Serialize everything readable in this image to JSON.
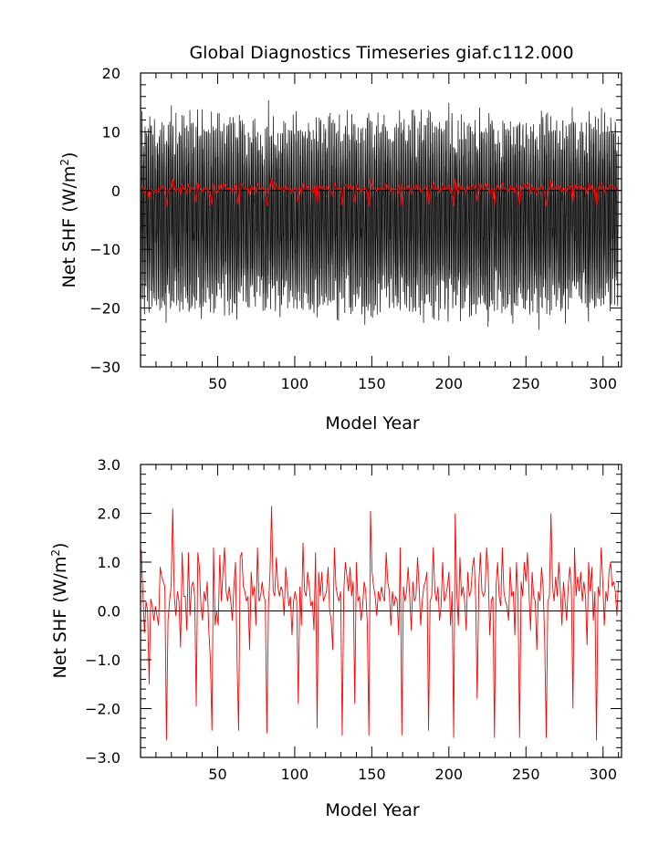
{
  "chart_data": [
    {
      "type": "line",
      "title": "Global Diagnostics Timeseries giaf.c112.000",
      "xlabel": "Model Year",
      "ylabel": "Net SHF (W/m²)",
      "ylabel_parts": {
        "base": "Net SHF (W/m",
        "sup": "2",
        "end": ")"
      },
      "xlim": [
        0,
        312
      ],
      "ylim": [
        -30,
        20
      ],
      "x_ticks": [
        50,
        100,
        150,
        200,
        250,
        300
      ],
      "x_tick_labels": [
        "50",
        "100",
        "150",
        "200",
        "250",
        "300"
      ],
      "y_ticks": [
        -30,
        -20,
        -10,
        0,
        10,
        20
      ],
      "y_tick_labels": [
        "−30",
        "−20",
        "−10",
        "0",
        "10",
        "20"
      ],
      "grid": false,
      "zero_line": true,
      "colors": {
        "monthly": "#000000",
        "annual": "#ff0000"
      },
      "series": [
        {
          "key": "monthly",
          "x_start": 0,
          "x_end": 310,
          "samples_per_year": 12,
          "typical_min": -18,
          "typical_max": 9,
          "extreme_min": -24,
          "extreme_max": 15.5
        },
        {
          "key": "annual",
          "ref": "annual_mean"
        }
      ]
    },
    {
      "type": "line",
      "title": "",
      "xlabel": "Model Year",
      "ylabel": "Net SHF (W/m²)",
      "ylabel_parts": {
        "base": "Net SHF (W/m",
        "sup": "2",
        "end": ")"
      },
      "xlim": [
        0,
        312
      ],
      "ylim": [
        -3.0,
        3.0
      ],
      "x_ticks": [
        50,
        100,
        150,
        200,
        250,
        300
      ],
      "x_tick_labels": [
        "50",
        "100",
        "150",
        "200",
        "250",
        "300"
      ],
      "y_ticks": [
        -3,
        -2,
        -1,
        0,
        1,
        2,
        3
      ],
      "y_tick_labels": [
        "−3.0",
        "−2.0",
        "−1.0",
        "0.0",
        "1.0",
        "2.0",
        "3.0"
      ],
      "grid": false,
      "zero_line": true,
      "colors": {
        "annual": "#ff0000"
      },
      "series": [
        {
          "key": "annual",
          "ref": "annual_mean"
        }
      ]
    }
  ],
  "annual_mean": [
    1.25,
    0.35,
    -0.45,
    0.2,
    0.0,
    -1.5,
    0.25,
    0.1,
    -0.2,
    0.1,
    -0.1,
    -0.3,
    0.9,
    0.7,
    0.6,
    0.5,
    -2.65,
    -0.2,
    0.2,
    0.5,
    2.1,
    0.3,
    -0.1,
    0.4,
    0.2,
    -0.75,
    1.2,
    0.3,
    0.3,
    -0.4,
    1.2,
    -0.1,
    0.5,
    0.6,
    0.3,
    -1.95,
    1.2,
    0.9,
    0.1,
    -0.2,
    0.4,
    0.2,
    0.6,
    -0.4,
    -1.0,
    -2.45,
    1.3,
    -0.3,
    0.0,
    -0.3,
    1.15,
    0.2,
    0.8,
    1.3,
    0.4,
    0.2,
    0.5,
    0.2,
    -0.2,
    0.5,
    1.0,
    -1.0,
    -2.45,
    1.1,
    1.2,
    0.5,
    0.4,
    0.2,
    0.3,
    -0.8,
    0.8,
    0.3,
    0.5,
    -0.3,
    1.3,
    0.2,
    0.3,
    0.6,
    0.3,
    0.2,
    -2.5,
    0.1,
    0.8,
    2.15,
    0.4,
    0.3,
    1.1,
    0.5,
    0.3,
    0.5,
    0.4,
    -0.1,
    0.9,
    0.5,
    0.1,
    0.3,
    -0.5,
    0.2,
    0.4,
    0.2,
    -1.9,
    0.5,
    -0.3,
    1.4,
    0.4,
    0.3,
    0.8,
    0.5,
    0.1,
    0.2,
    -0.4,
    1.2,
    -2.4,
    0.8,
    0.3,
    0.8,
    0.2,
    0.3,
    0.4,
    0.9,
    0.0,
    -0.2,
    -0.8,
    1.3,
    0.5,
    0.3,
    0.2,
    0.4,
    -2.55,
    0.4,
    1.0,
    0.7,
    0.4,
    0.9,
    0.3,
    0.6,
    -1.9,
    1.0,
    0.2,
    0.3,
    -0.2,
    0.1,
    0.6,
    0.4,
    -0.3,
    -2.55,
    2.05,
    0.8,
    0.5,
    0.3,
    -0.1,
    0.4,
    0.2,
    0.5,
    0.3,
    0.2,
    1.2,
    0.6,
    0.4,
    -0.3,
    0.4,
    0.1,
    0.3,
    0.2,
    -0.5,
    1.3,
    -2.55,
    0.5,
    0.2,
    0.4,
    0.9,
    0.3,
    -0.4,
    0.6,
    0.2,
    0.3,
    1.1,
    0.5,
    -0.3,
    0.2,
    0.5,
    0.6,
    0.8,
    -2.45,
    0.2,
    0.3,
    1.3,
    0.4,
    0.2,
    0.5,
    -0.2,
    0.1,
    1.0,
    0.2,
    0.3,
    0.5,
    0.8,
    -0.3,
    0.4,
    -2.6,
    2.0,
    0.4,
    -0.3,
    1.1,
    0.3,
    0.5,
    0.2,
    -0.4,
    0.8,
    0.3,
    0.4,
    0.9,
    1.1,
    0.3,
    -1.8,
    0.5,
    1.2,
    0.4,
    0.3,
    0.4,
    1.3,
    0.8,
    -0.5,
    0.2,
    0.3,
    -2.6,
    0.5,
    1.0,
    0.3,
    0.1,
    1.3,
    0.4,
    0.2,
    0.1,
    -0.2,
    0.9,
    0.3,
    0.4,
    -0.5,
    1.0,
    0.3,
    -2.6,
    0.6,
    0.3,
    1.0,
    0.6,
    1.2,
    0.4,
    -0.4,
    0.8,
    0.3,
    0.2,
    -0.8,
    0.4,
    0.2,
    0.9,
    0.5,
    -0.6,
    -2.6,
    0.2,
    0.3,
    2.0,
    0.5,
    0.2,
    0.7,
    0.3,
    1.0,
    0.4,
    -0.3,
    0.6,
    0.2,
    -0.2,
    0.5,
    0.9,
    0.5,
    -2.0,
    1.3,
    0.3,
    0.7,
    0.4,
    0.8,
    0.2,
    0.6,
    0.3,
    -0.7,
    1.0,
    0.4,
    0.9,
    -0.2,
    0.4,
    -2.65,
    0.5,
    0.3,
    1.3,
    0.6,
    -0.3,
    0.4,
    0.2,
    0.8,
    1.0,
    0.5,
    0.6,
    0.4,
    -0.1,
    0.6
  ]
}
